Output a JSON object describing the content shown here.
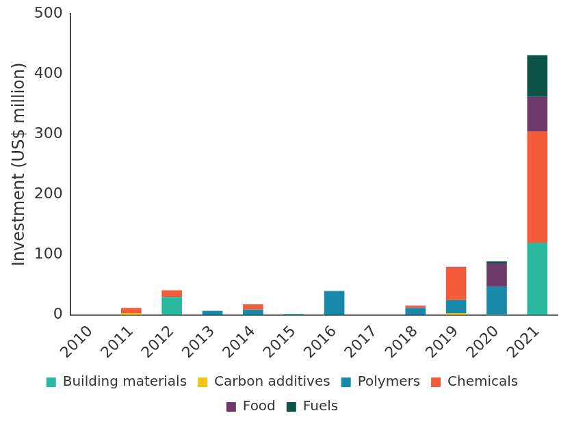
{
  "chart_data": {
    "type": "bar",
    "stacked": true,
    "grid": false,
    "legend": "bottom",
    "y_label": "Investment (US$ million)",
    "categories": [
      "2010",
      "2011",
      "2012",
      "2013",
      "2014",
      "2015",
      "2016",
      "2017",
      "2018",
      "2019",
      "2020",
      "2021"
    ],
    "ylim": [
      0,
      500
    ],
    "yticks": [
      0,
      100,
      200,
      300,
      400,
      500
    ],
    "series": [
      {
        "name": "Building materials",
        "color": "#2bb8a0",
        "values": [
          0,
          0,
          30,
          0,
          0,
          2,
          0,
          0,
          0,
          0,
          1,
          120
        ]
      },
      {
        "name": "Carbon additives",
        "color": "#f5c518",
        "values": [
          0,
          3,
          0,
          0,
          0,
          0,
          0,
          0,
          0,
          3,
          0,
          0
        ]
      },
      {
        "name": "Polymers",
        "color": "#1889a8",
        "values": [
          0,
          0,
          0,
          7,
          9,
          0,
          40,
          0,
          12,
          22,
          46,
          0
        ]
      },
      {
        "name": "Chemicals",
        "color": "#f25c3b",
        "values": [
          0,
          9,
          11,
          0,
          9,
          0,
          0,
          0,
          3,
          54,
          0,
          185
        ]
      },
      {
        "name": "Food",
        "color": "#6e3a6a",
        "values": [
          0,
          0,
          0,
          0,
          0,
          0,
          0,
          0,
          1,
          1,
          39,
          57
        ]
      },
      {
        "name": "Fuels",
        "color": "#0b5447",
        "values": [
          0,
          0,
          0,
          0,
          0,
          0,
          0,
          0,
          0,
          0,
          3,
          69
        ]
      }
    ]
  }
}
